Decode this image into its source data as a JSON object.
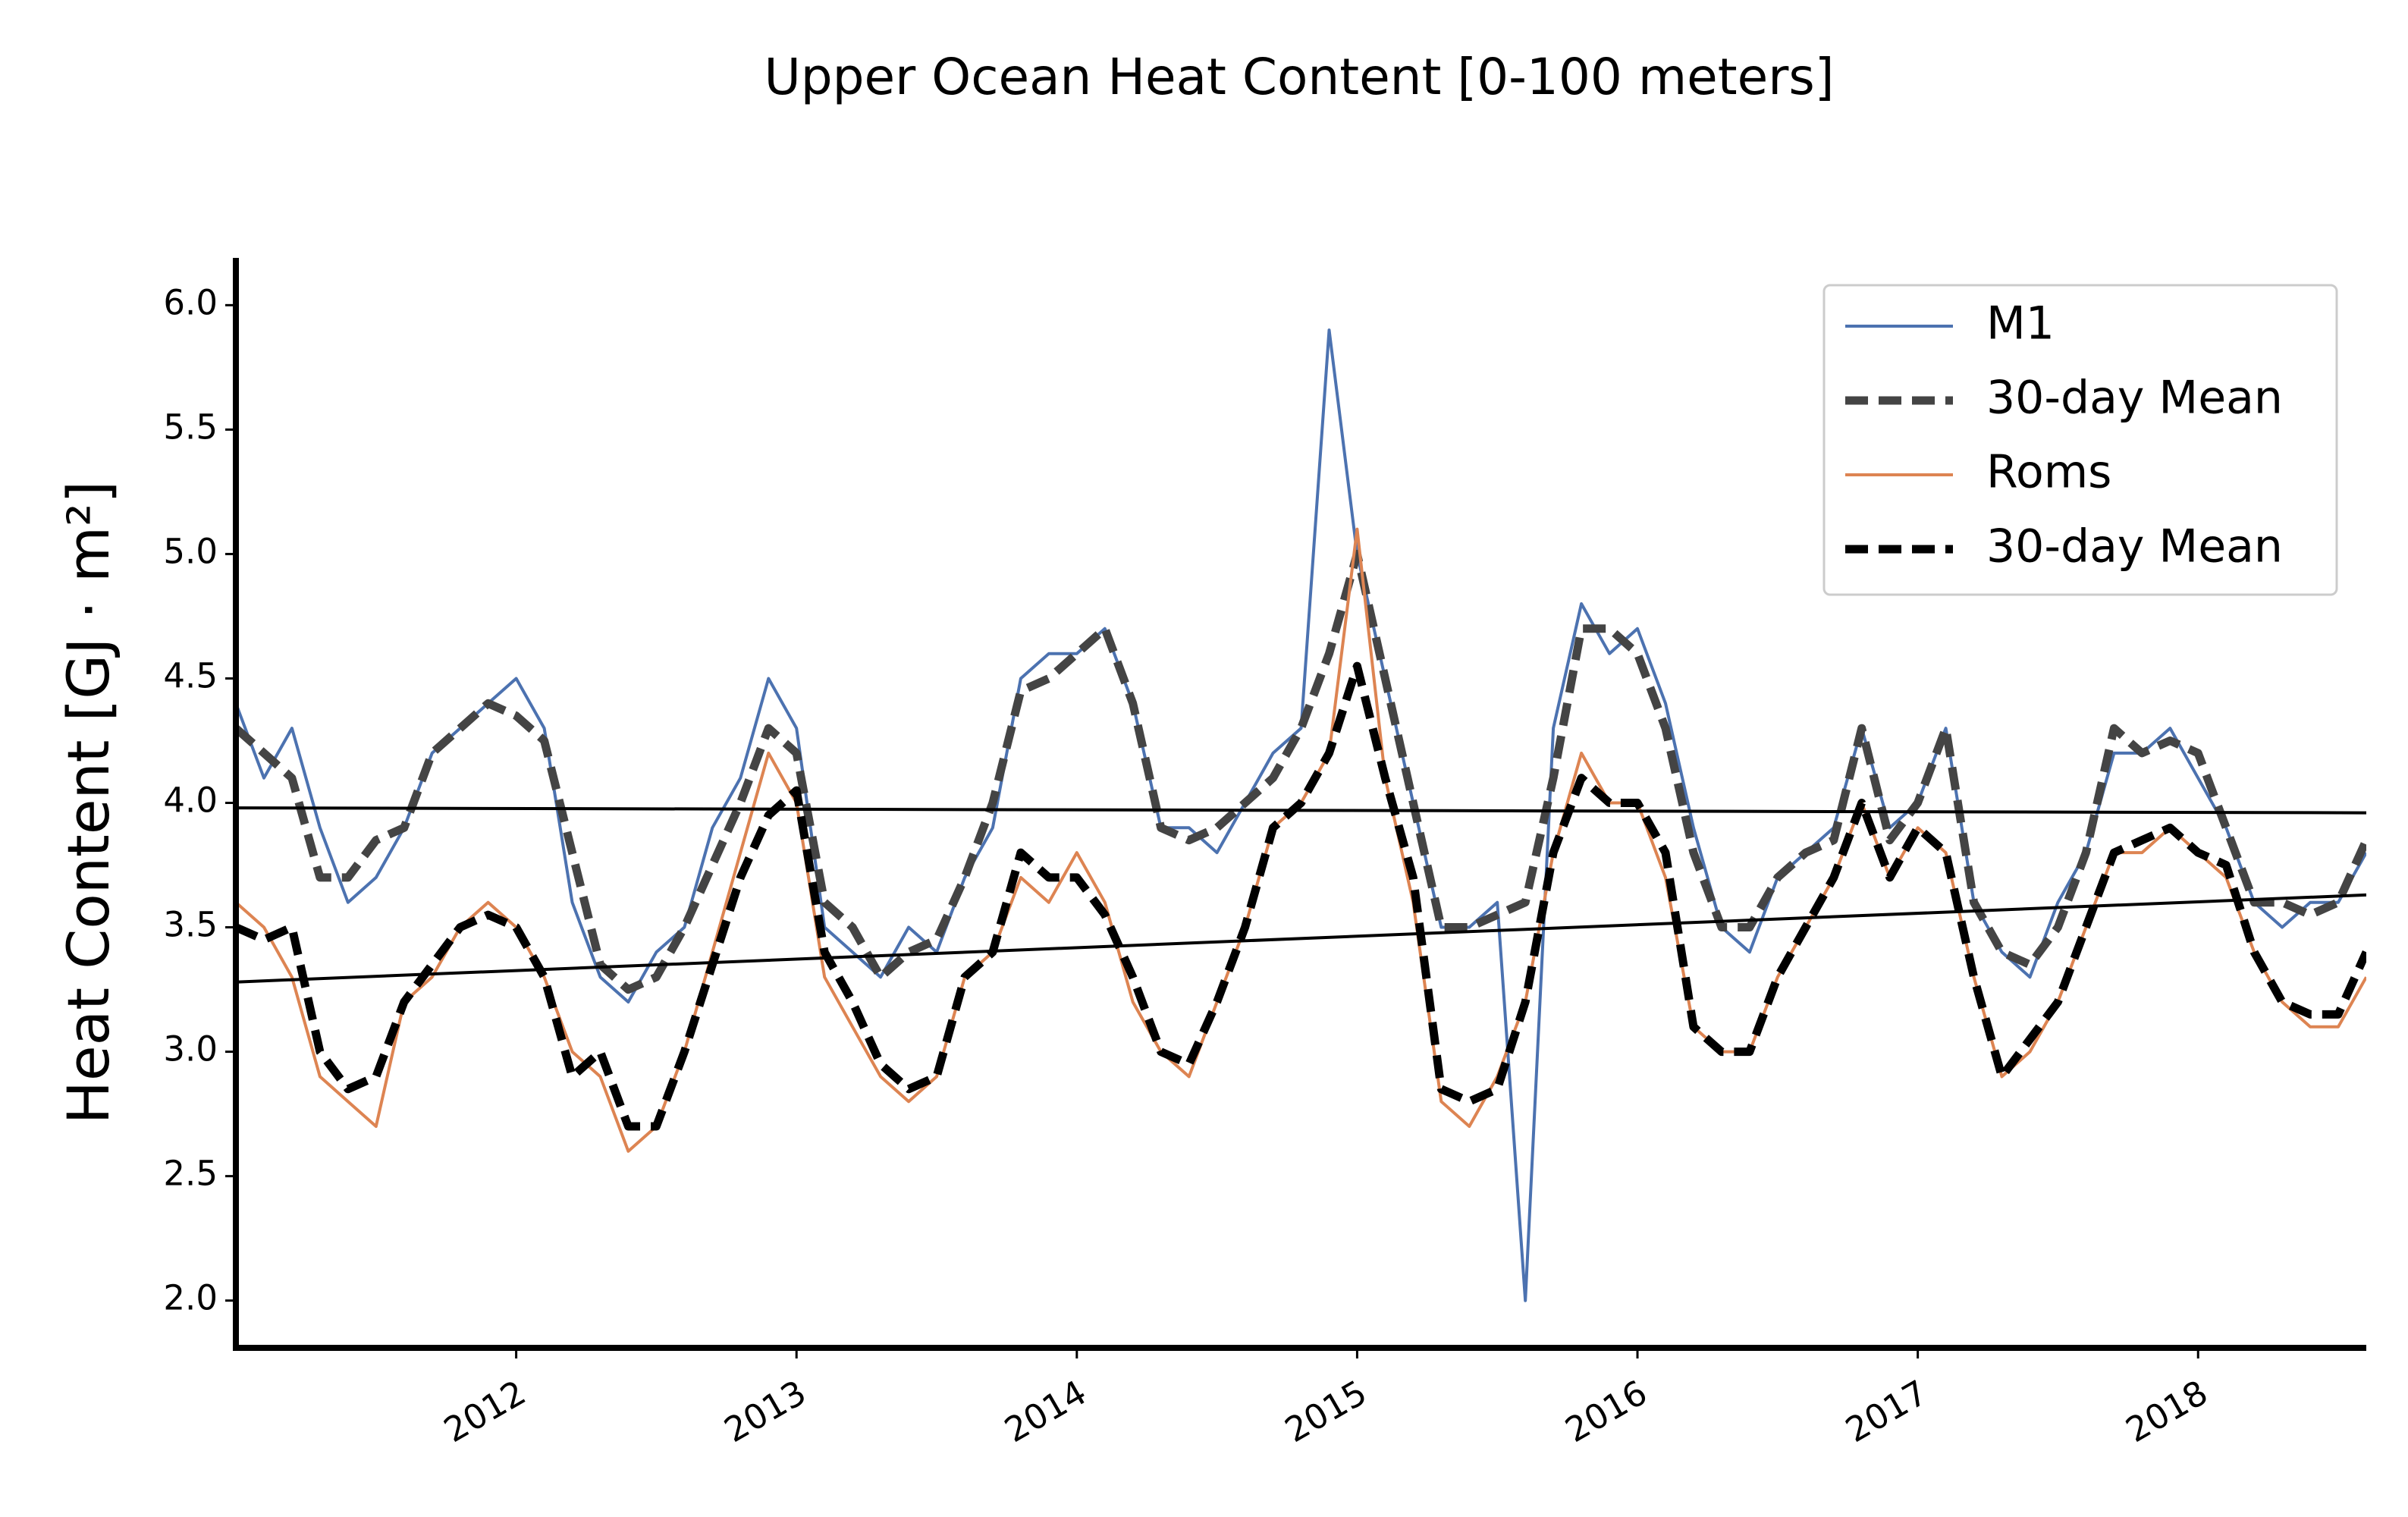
{
  "chart_data": {
    "type": "line",
    "title": "Upper Ocean Heat Content [0-100 meters]",
    "y_label": "Heat Content [GJ · m²]",
    "x": [
      2011.0,
      2011.1,
      2011.2,
      2011.3,
      2011.4,
      2011.5,
      2011.6,
      2011.7,
      2011.8,
      2011.9,
      2012.0,
      2012.1,
      2012.2,
      2012.3,
      2012.4,
      2012.5,
      2012.6,
      2012.7,
      2012.8,
      2012.9,
      2013.0,
      2013.1,
      2013.2,
      2013.3,
      2013.4,
      2013.5,
      2013.6,
      2013.7,
      2013.8,
      2013.9,
      2014.0,
      2014.1,
      2014.2,
      2014.3,
      2014.4,
      2014.5,
      2014.6,
      2014.7,
      2014.8,
      2014.9,
      2015.0,
      2015.1,
      2015.2,
      2015.3,
      2015.4,
      2015.5,
      2015.6,
      2015.7,
      2015.8,
      2015.9,
      2016.0,
      2016.1,
      2016.2,
      2016.3,
      2016.4,
      2016.5,
      2016.6,
      2016.7,
      2016.8,
      2016.9,
      2017.0,
      2017.1,
      2017.2,
      2017.3,
      2017.4,
      2017.5,
      2017.6,
      2017.7,
      2017.8,
      2017.9,
      2018.0,
      2018.1,
      2018.2,
      2018.3,
      2018.4,
      2018.5,
      2018.6
    ],
    "series": [
      {
        "name": "M1",
        "color": "#4c72b0",
        "dashed": false,
        "values": [
          4.4,
          4.1,
          4.3,
          3.9,
          3.6,
          3.7,
          3.9,
          4.2,
          4.3,
          4.4,
          4.5,
          4.3,
          3.6,
          3.3,
          3.2,
          3.4,
          3.5,
          3.9,
          4.1,
          4.5,
          4.3,
          3.5,
          3.4,
          3.3,
          3.5,
          3.4,
          3.7,
          3.9,
          4.5,
          4.6,
          4.6,
          4.7,
          4.4,
          3.9,
          3.9,
          3.8,
          4.0,
          4.2,
          4.3,
          5.9,
          5.0,
          4.5,
          4.0,
          3.5,
          3.5,
          3.6,
          2.0,
          4.3,
          4.8,
          4.6,
          4.7,
          4.4,
          3.9,
          3.5,
          3.4,
          3.7,
          3.8,
          3.9,
          4.3,
          3.9,
          4.0,
          4.3,
          3.6,
          3.4,
          3.3,
          3.6,
          3.8,
          4.2,
          4.2,
          4.3,
          4.1,
          3.9,
          3.6,
          3.5,
          3.6,
          3.6,
          3.8
        ]
      },
      {
        "name": "30-day Mean",
        "color": "#444444",
        "dashed": true,
        "values": [
          4.3,
          4.2,
          4.1,
          3.7,
          3.7,
          3.85,
          3.9,
          4.2,
          4.3,
          4.4,
          4.35,
          4.25,
          3.8,
          3.35,
          3.25,
          3.3,
          3.5,
          3.75,
          4.0,
          4.3,
          4.2,
          3.6,
          3.5,
          3.3,
          3.4,
          3.45,
          3.7,
          4.0,
          4.45,
          4.5,
          4.6,
          4.7,
          4.4,
          3.9,
          3.85,
          3.9,
          4.0,
          4.1,
          4.3,
          4.6,
          5.0,
          4.5,
          4.0,
          3.5,
          3.5,
          3.55,
          3.6,
          4.1,
          4.7,
          4.7,
          4.6,
          4.3,
          3.8,
          3.5,
          3.5,
          3.7,
          3.8,
          3.85,
          4.3,
          3.85,
          4.0,
          4.3,
          3.6,
          3.4,
          3.35,
          3.5,
          3.8,
          4.3,
          4.2,
          4.25,
          4.2,
          3.9,
          3.6,
          3.6,
          3.55,
          3.6,
          3.85
        ]
      },
      {
        "name": "Roms",
        "color": "#dd8452",
        "dashed": false,
        "values": [
          3.6,
          3.5,
          3.3,
          2.9,
          2.8,
          2.7,
          3.2,
          3.3,
          3.5,
          3.6,
          3.5,
          3.3,
          3.0,
          2.9,
          2.6,
          2.7,
          3.0,
          3.4,
          3.8,
          4.2,
          4.0,
          3.3,
          3.1,
          2.9,
          2.8,
          2.9,
          3.3,
          3.4,
          3.7,
          3.6,
          3.8,
          3.6,
          3.2,
          3.0,
          2.9,
          3.2,
          3.5,
          3.9,
          4.0,
          4.2,
          5.1,
          4.1,
          3.6,
          2.8,
          2.7,
          2.9,
          3.2,
          3.8,
          4.2,
          4.0,
          4.0,
          3.7,
          3.1,
          3.0,
          3.0,
          3.3,
          3.5,
          3.7,
          4.0,
          3.7,
          3.9,
          3.8,
          3.3,
          2.9,
          3.0,
          3.2,
          3.5,
          3.8,
          3.8,
          3.9,
          3.8,
          3.7,
          3.4,
          3.2,
          3.1,
          3.1,
          3.3
        ]
      },
      {
        "name": "30-day Mean",
        "color": "#000000",
        "dashed": true,
        "values": [
          3.5,
          3.45,
          3.5,
          3.0,
          2.85,
          2.9,
          3.2,
          3.35,
          3.5,
          3.55,
          3.5,
          3.3,
          2.9,
          3.0,
          2.7,
          2.7,
          3.0,
          3.35,
          3.7,
          3.95,
          4.05,
          3.4,
          3.2,
          2.95,
          2.85,
          2.9,
          3.3,
          3.4,
          3.8,
          3.7,
          3.7,
          3.55,
          3.3,
          3.0,
          2.95,
          3.2,
          3.5,
          3.9,
          4.0,
          4.2,
          4.55,
          4.1,
          3.7,
          2.85,
          2.8,
          2.85,
          3.2,
          3.8,
          4.1,
          4.0,
          4.0,
          3.8,
          3.1,
          3.0,
          3.0,
          3.3,
          3.5,
          3.7,
          4.0,
          3.7,
          3.9,
          3.8,
          3.3,
          2.9,
          3.05,
          3.2,
          3.5,
          3.8,
          3.85,
          3.9,
          3.8,
          3.75,
          3.4,
          3.2,
          3.15,
          3.15,
          3.4
        ]
      }
    ],
    "trend_lines": [
      {
        "color": "#000000",
        "x": [
          2011.0,
          2018.6
        ],
        "values": [
          3.98,
          3.96
        ]
      },
      {
        "color": "#000000",
        "x": [
          2011.0,
          2018.6
        ],
        "values": [
          3.28,
          3.63
        ]
      }
    ],
    "xlim": [
      2011.0,
      2018.6
    ],
    "xticks": [
      2012,
      2013,
      2014,
      2015,
      2016,
      2017,
      2018
    ],
    "ylim": [
      1.81,
      6.19
    ],
    "yticks": [
      {
        "value": 2,
        "label": "2.0"
      },
      {
        "value": 2.5,
        "label": "2.5"
      },
      {
        "value": 3,
        "label": "3.0"
      },
      {
        "value": 3.5,
        "label": "3.5"
      },
      {
        "value": 4,
        "label": "4.0"
      },
      {
        "value": 4.5,
        "label": "4.5"
      },
      {
        "value": 5,
        "label": "5.0"
      },
      {
        "value": 5.5,
        "label": "5.5"
      },
      {
        "value": 6,
        "label": "6.0"
      }
    ],
    "grid": false,
    "legend": "upper right"
  }
}
